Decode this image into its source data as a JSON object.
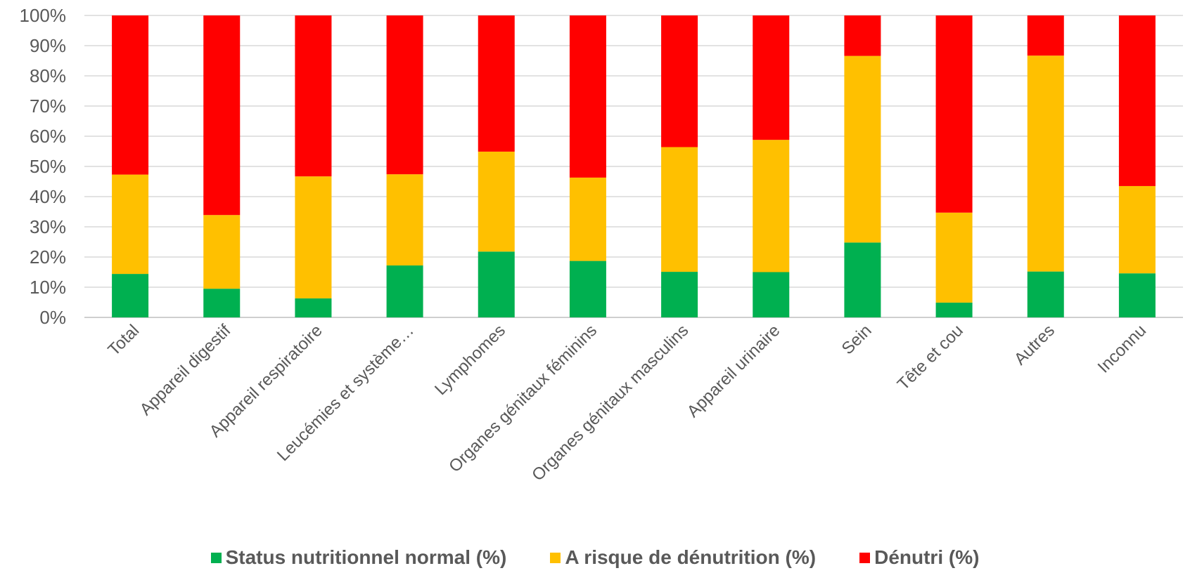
{
  "chart_data": {
    "type": "bar",
    "stacked": true,
    "percent_stacked": true,
    "categories": [
      "Total",
      "Appareil digestif",
      "Appareil respiratoire",
      "Leucémies et système…",
      "Lymphomes",
      "Organes génitaux féminins",
      "Organes génitaux masculins",
      "Appareil urinaire",
      "Sein",
      "Tête et cou",
      "Autres",
      "Inconnu"
    ],
    "series": [
      {
        "name": "Status nutritionnel normal (%)",
        "color": "#00b050",
        "values": [
          14.4,
          9.5,
          6.3,
          17.2,
          21.8,
          18.7,
          15.1,
          15.0,
          24.8,
          4.9,
          15.2,
          14.6
        ]
      },
      {
        "name": "A risque de dénutrition (%)",
        "color": "#ffc000",
        "values": [
          32.9,
          24.4,
          40.4,
          30.2,
          33.1,
          27.6,
          41.3,
          43.8,
          61.8,
          29.8,
          71.5,
          28.9
        ]
      },
      {
        "name": "Dénutri (%)",
        "color": "#ff0000",
        "values": [
          52.7,
          66.1,
          53.3,
          52.6,
          45.1,
          53.7,
          43.6,
          41.2,
          13.4,
          65.3,
          13.3,
          56.5
        ]
      }
    ],
    "y_ticks": [
      "0%",
      "10%",
      "20%",
      "30%",
      "40%",
      "50%",
      "60%",
      "70%",
      "80%",
      "90%",
      "100%"
    ],
    "ylim": [
      0,
      100
    ],
    "grid": true,
    "legend_position": "bottom",
    "title": "",
    "xlabel": "",
    "ylabel": ""
  }
}
